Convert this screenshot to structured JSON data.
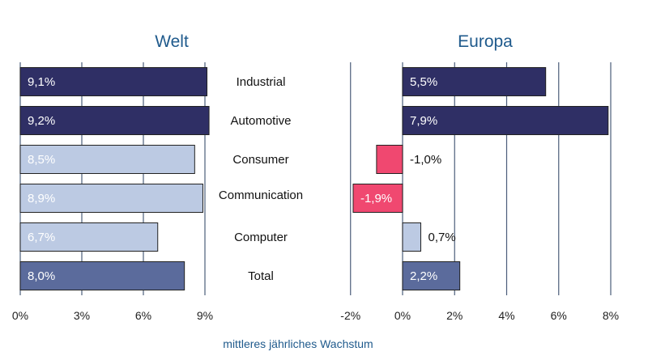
{
  "chart_data": [
    {
      "type": "bar",
      "orientation": "horizontal",
      "title": "Welt",
      "categories": [
        "Industrial",
        "Automotive",
        "Consumer",
        "Communication",
        "Computer",
        "Total"
      ],
      "values": [
        9.1,
        9.2,
        8.5,
        8.9,
        6.7,
        8.0
      ],
      "value_labels": [
        "9,1%",
        "9,2%",
        "8,5%",
        "8,9%",
        "6,7%",
        "8,0%"
      ],
      "xlim": [
        0,
        10
      ],
      "xticks": [
        0,
        3,
        6,
        9
      ],
      "xtick_labels": [
        "0%",
        "3%",
        "6%",
        "9%"
      ],
      "grid": true
    },
    {
      "type": "bar",
      "orientation": "horizontal",
      "title": "Europa",
      "categories": [
        "Industrial",
        "Automotive",
        "Consumer",
        "Communication",
        "Computer",
        "Total"
      ],
      "values": [
        5.5,
        7.9,
        -1.0,
        -1.9,
        0.7,
        2.2
      ],
      "value_labels": [
        "5,5%",
        "7,9%",
        "-1,0%",
        "-1,9%",
        "0,7%",
        "2,2%"
      ],
      "xlim": [
        -2,
        8
      ],
      "xticks": [
        -2,
        0,
        2,
        4,
        6,
        8
      ],
      "xtick_labels": [
        "-2%",
        "0%",
        "2%",
        "4%",
        "6%",
        "8%"
      ],
      "grid": true
    }
  ],
  "xlabel": "mittleres jährliches Wachstum",
  "colors": {
    "title": "#1f5a8c",
    "xlabel": "#1f5a8c",
    "grid": "#4b5d7a",
    "dark_navy": "#2f2f65",
    "light_blue": "#bccae3",
    "medium_blue": "#5b6b9c",
    "negative_pink": "#f04870",
    "bar_stroke": "#222222"
  },
  "bar_styles": {
    "Industrial": "dark_navy",
    "Automotive": "dark_navy",
    "Consumer": "light_blue",
    "Communication": "light_blue",
    "Computer": "light_blue",
    "Total": "medium_blue"
  }
}
